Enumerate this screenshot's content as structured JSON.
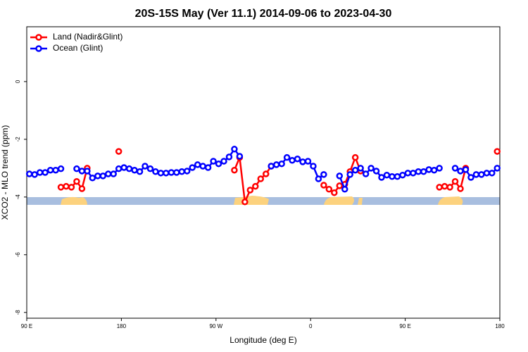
{
  "chart_data": {
    "type": "line",
    "title": "20S-15S May (Ver 11.1)   2014-09-06 to 2023-04-30",
    "x_label": "Longitude (deg E)",
    "y_label": "XCO2 - MLO trend (ppm)",
    "xlim": [
      90,
      540
    ],
    "xticks": [
      {
        "value": 90,
        "label": "90 E"
      },
      180,
      {
        "value": 270,
        "label": "90 W"
      },
      {
        "value": 360,
        "label": "0"
      },
      {
        "value": 450,
        "label": "90 E"
      },
      {
        "value": 540,
        "label": "180"
      }
    ],
    "ylim": [
      -8.2,
      1.9
    ],
    "yticks": [
      -8,
      -6,
      -4,
      -2,
      0
    ],
    "legend": "top-left",
    "x": [
      92.5,
      97.5,
      102.5,
      107.5,
      112.5,
      117.5,
      122.5,
      127.5,
      132.5,
      137.5,
      142.5,
      147.5,
      152.5,
      157.5,
      162.5,
      167.5,
      172.5,
      177.5,
      182.5,
      187.5,
      192.5,
      197.5,
      202.5,
      207.5,
      212.5,
      217.5,
      222.5,
      227.5,
      232.5,
      237.5,
      242.5,
      247.5,
      252.5,
      257.5,
      262.5,
      267.5,
      272.5,
      277.5,
      282.5,
      287.5,
      292.5,
      297.5,
      302.5,
      307.5,
      312.5,
      317.5,
      322.5,
      327.5,
      332.5,
      337.5,
      342.5,
      347.5,
      352.5,
      357.5,
      362.5,
      367.5,
      372.5,
      377.5,
      382.5,
      387.5,
      392.5,
      397.5,
      402.5,
      407.5,
      412.5,
      417.5,
      422.5,
      427.5,
      432.5,
      437.5,
      442.5,
      447.5,
      452.5,
      457.5,
      462.5,
      467.5,
      472.5,
      477.5,
      482.5,
      487.5,
      492.5,
      497.5,
      502.5,
      507.5,
      512.5,
      517.5,
      522.5,
      527.5,
      532.5,
      537.5
    ],
    "series": [
      {
        "name": "Land (Nadir&Glint)",
        "color": "#ff0000",
        "values": [
          null,
          null,
          null,
          null,
          null,
          null,
          -3.66,
          -3.63,
          -3.66,
          -3.46,
          -3.71,
          -3.0,
          null,
          null,
          null,
          null,
          null,
          -2.42,
          null,
          null,
          null,
          null,
          null,
          null,
          null,
          null,
          null,
          null,
          null,
          null,
          null,
          null,
          null,
          null,
          null,
          null,
          null,
          null,
          null,
          -3.07,
          -2.63,
          -4.17,
          -3.76,
          -3.63,
          -3.37,
          -3.2,
          -2.93,
          null,
          null,
          null,
          null,
          null,
          null,
          null,
          null,
          null,
          -3.59,
          -3.73,
          -3.85,
          -3.61,
          -3.56,
          -3.12,
          -2.63,
          -3.1,
          null,
          null,
          null,
          null,
          null,
          null,
          null,
          null,
          null,
          null,
          null,
          null,
          null,
          null,
          -3.66,
          -3.63,
          -3.66,
          -3.46,
          -3.71,
          -3.0,
          null,
          null,
          null,
          null,
          null,
          -2.42
        ]
      },
      {
        "name": "Ocean (Glint)",
        "color": "#0000ff",
        "values": [
          -3.2,
          -3.22,
          -3.15,
          -3.15,
          -3.07,
          -3.07,
          -3.02,
          null,
          null,
          -3.02,
          -3.1,
          -3.1,
          -3.34,
          -3.27,
          -3.27,
          -3.2,
          -3.2,
          -3.02,
          -2.98,
          -3.02,
          -3.07,
          -3.12,
          -2.93,
          -3.02,
          -3.12,
          -3.17,
          -3.17,
          -3.15,
          -3.15,
          -3.12,
          -3.1,
          -2.98,
          -2.88,
          -2.93,
          -2.98,
          -2.76,
          -2.85,
          -2.76,
          -2.61,
          -2.34,
          -2.59,
          null,
          null,
          null,
          null,
          null,
          -2.93,
          -2.88,
          -2.85,
          -2.63,
          -2.73,
          -2.68,
          -2.78,
          -2.76,
          -2.93,
          -3.37,
          -3.22,
          null,
          null,
          -3.27,
          -3.73,
          -3.22,
          -3.07,
          -3.0,
          -3.2,
          -3.0,
          -3.1,
          -3.32,
          -3.24,
          -3.29,
          -3.29,
          -3.24,
          -3.17,
          -3.17,
          -3.12,
          -3.12,
          -3.05,
          -3.07,
          -3.0,
          null,
          null,
          -3.0,
          -3.1,
          -3.05,
          -3.32,
          -3.22,
          -3.22,
          -3.17,
          -3.17,
          -3.0
        ]
      }
    ]
  }
}
